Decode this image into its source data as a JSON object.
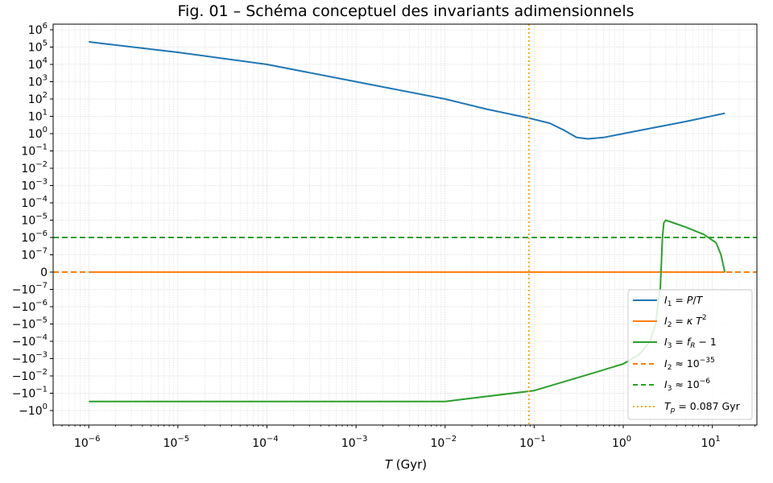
{
  "chart_data": {
    "type": "line",
    "title": "Fig. 01 – Schéma conceptuel des invariants adimensionnels",
    "xlabel": "T (Gyr)",
    "x_scale": "log",
    "xlim_log10": [
      -6.4,
      1.5
    ],
    "y_scale": "symlog",
    "y_ticks": [
      "10^6",
      "10^5",
      "10^4",
      "10^3",
      "10^2",
      "10^1",
      "10^0",
      "10^-1",
      "10^-2",
      "10^-3",
      "10^-4",
      "10^-5",
      "10^-6",
      "10^-7",
      "0",
      "−10^-7",
      "−10^-6",
      "−10^-5",
      "−10^-4",
      "−10^-3",
      "−10^-2",
      "−10^-1",
      "−10^0"
    ],
    "x_ticks": [
      "10^-6",
      "10^-5",
      "10^-4",
      "10^-3",
      "10^-2",
      "10^-1",
      "10^0",
      "10^1"
    ],
    "grid": true,
    "legend_position": "lower-right",
    "series": [
      {
        "name": "I1 = P/T",
        "color": "#1f77b4",
        "style": "solid",
        "points": [
          {
            "x": 1e-06,
            "y": 200000
          },
          {
            "x": 1e-05,
            "y": 50000
          },
          {
            "x": 0.0001,
            "y": 10000
          },
          {
            "x": 0.001,
            "y": 1000
          },
          {
            "x": 0.01,
            "y": 100
          },
          {
            "x": 0.03,
            "y": 25
          },
          {
            "x": 0.087,
            "y": 8
          },
          {
            "x": 0.15,
            "y": 4
          },
          {
            "x": 0.22,
            "y": 1.5
          },
          {
            "x": 0.3,
            "y": 0.6
          },
          {
            "x": 0.4,
            "y": 0.5
          },
          {
            "x": 0.6,
            "y": 0.6
          },
          {
            "x": 1.0,
            "y": 1.0
          },
          {
            "x": 2.0,
            "y": 2.0
          },
          {
            "x": 5.0,
            "y": 5.0
          },
          {
            "x": 13.8,
            "y": 15
          }
        ]
      },
      {
        "name": "I2 = κ T²",
        "color": "#ff7f0e",
        "style": "solid",
        "points": [
          {
            "x": 1e-06,
            "y": 0
          },
          {
            "x": 13.8,
            "y": 0
          }
        ]
      },
      {
        "name": "I3 = fR − 1",
        "color": "#2ca02c",
        "style": "solid",
        "points": [
          {
            "x": 1e-06,
            "y": -0.3
          },
          {
            "x": 0.01,
            "y": -0.3
          },
          {
            "x": 0.1,
            "y": -0.07
          },
          {
            "x": 0.5,
            "y": -0.006
          },
          {
            "x": 1.0,
            "y": -0.002
          },
          {
            "x": 1.5,
            "y": -0.0006
          },
          {
            "x": 2.0,
            "y": -0.0001
          },
          {
            "x": 2.3,
            "y": -1e-05
          },
          {
            "x": 2.5,
            "y": -3e-07
          },
          {
            "x": 2.6,
            "y": -1e-07
          },
          {
            "x": 2.65,
            "y": 0
          },
          {
            "x": 2.7,
            "y": 1e-07
          },
          {
            "x": 2.75,
            "y": 1e-06
          },
          {
            "x": 2.85,
            "y": 7e-06
          },
          {
            "x": 3.0,
            "y": 1e-05
          },
          {
            "x": 5.0,
            "y": 4e-06
          },
          {
            "x": 8.0,
            "y": 1.5e-06
          },
          {
            "x": 11.0,
            "y": 5e-07
          },
          {
            "x": 12.5,
            "y": 1e-07
          },
          {
            "x": 13.8,
            "y": 0
          }
        ]
      }
    ],
    "hlines": [
      {
        "name": "I2 ≈ 10^-35",
        "y": 0,
        "color": "#ff7f0e",
        "style": "dashed"
      },
      {
        "name": "I3 ≈ 10^-6",
        "y": 1e-06,
        "color": "#2ca02c",
        "style": "dashed"
      }
    ],
    "vlines": [
      {
        "name": "Tp = 0.087 Gyr",
        "x": 0.087,
        "color": "#ffa500",
        "style": "dotted"
      }
    ],
    "legend": [
      {
        "key": "I1",
        "color": "#1f77b4",
        "style": "solid"
      },
      {
        "key": "I2",
        "color": "#ff7f0e",
        "style": "solid"
      },
      {
        "key": "I3",
        "color": "#2ca02c",
        "style": "solid"
      },
      {
        "key": "I2approx",
        "color": "#ff7f0e",
        "style": "dashed"
      },
      {
        "key": "I3approx",
        "color": "#2ca02c",
        "style": "dashed"
      },
      {
        "key": "Tp",
        "color": "#ffa500",
        "style": "dotted"
      }
    ]
  }
}
